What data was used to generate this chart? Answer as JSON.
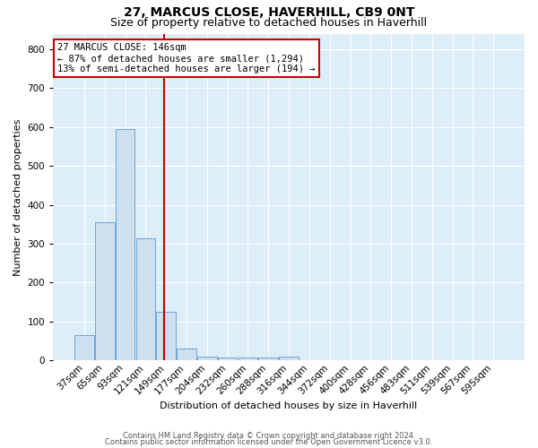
{
  "title": "27, MARCUS CLOSE, HAVERHILL, CB9 0NT",
  "subtitle": "Size of property relative to detached houses in Haverhill",
  "xlabel": "Distribution of detached houses by size in Haverhill",
  "ylabel": "Number of detached properties",
  "bar_labels": [
    "37sqm",
    "65sqm",
    "93sqm",
    "121sqm",
    "149sqm",
    "177sqm",
    "204sqm",
    "232sqm",
    "260sqm",
    "288sqm",
    "316sqm",
    "344sqm",
    "372sqm",
    "400sqm",
    "428sqm",
    "456sqm",
    "483sqm",
    "511sqm",
    "539sqm",
    "567sqm",
    "595sqm"
  ],
  "bar_heights": [
    65,
    355,
    595,
    315,
    125,
    30,
    10,
    8,
    8,
    8,
    10,
    0,
    0,
    0,
    0,
    0,
    0,
    0,
    0,
    0,
    0
  ],
  "bar_color": "#cce0f0",
  "bar_edge_color": "#5b9bd5",
  "vline_color": "#cc0000",
  "annotation_line1": "27 MARCUS CLOSE: 146sqm",
  "annotation_line2": "← 87% of detached houses are smaller (1,294)",
  "annotation_line3": "13% of semi-detached houses are larger (194) →",
  "annotation_box_color": "#ffffff",
  "annotation_box_edge": "#cc0000",
  "ylim": [
    0,
    840
  ],
  "yticks": [
    0,
    100,
    200,
    300,
    400,
    500,
    600,
    700,
    800
  ],
  "footer_line1": "Contains HM Land Registry data © Crown copyright and database right 2024.",
  "footer_line2": "Contains public sector information licensed under the Open Government Licence v3.0.",
  "background_color": "#ddeef9",
  "title_fontsize": 10,
  "subtitle_fontsize": 9,
  "axis_fontsize": 8,
  "tick_fontsize": 7.5,
  "footer_fontsize": 6
}
